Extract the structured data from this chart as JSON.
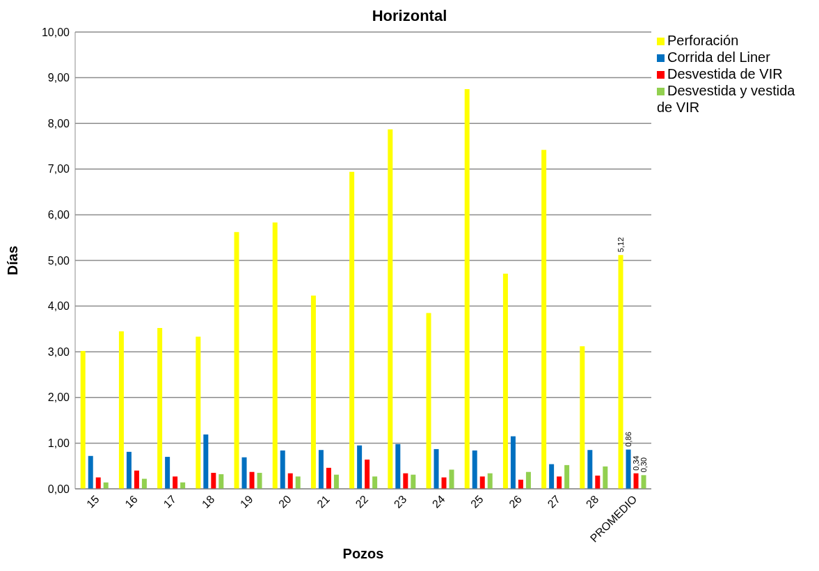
{
  "chart_data": {
    "type": "bar",
    "title": "Horizontal",
    "xlabel": "Pozos",
    "ylabel": "Días",
    "categories": [
      "15",
      "16",
      "17",
      "18",
      "19",
      "20",
      "21",
      "22",
      "23",
      "24",
      "25",
      "26",
      "27",
      "28",
      "PROMEDIO"
    ],
    "series": [
      {
        "name": "Perforación",
        "color": "#ffff00",
        "values": [
          3.02,
          3.45,
          3.52,
          3.33,
          5.62,
          5.83,
          4.23,
          6.94,
          7.87,
          3.85,
          8.75,
          4.71,
          7.42,
          3.12,
          5.12
        ],
        "value_labels": [
          null,
          null,
          null,
          null,
          null,
          null,
          null,
          null,
          null,
          null,
          null,
          null,
          null,
          null,
          "5,12"
        ]
      },
      {
        "name": "Corrida del Liner",
        "color": "#0070c0",
        "values": [
          0.72,
          0.81,
          0.7,
          1.19,
          0.69,
          0.84,
          0.85,
          0.95,
          0.98,
          0.87,
          0.84,
          1.15,
          0.54,
          0.85,
          0.86
        ],
        "value_labels": [
          null,
          null,
          null,
          null,
          null,
          null,
          null,
          null,
          null,
          null,
          null,
          null,
          null,
          null,
          "0,86"
        ]
      },
      {
        "name": "Desvestida de VIR",
        "color": "#ff0000",
        "values": [
          0.25,
          0.4,
          0.27,
          0.35,
          0.37,
          0.34,
          0.46,
          0.64,
          0.34,
          0.25,
          0.27,
          0.2,
          0.27,
          0.29,
          0.34
        ],
        "value_labels": [
          null,
          null,
          null,
          null,
          null,
          null,
          null,
          null,
          null,
          null,
          null,
          null,
          null,
          null,
          "0,34"
        ]
      },
      {
        "name": "Desvestida y vestida de VIR",
        "color": "#92d050",
        "values": [
          0.14,
          0.22,
          0.14,
          0.32,
          0.35,
          0.27,
          0.31,
          0.27,
          0.31,
          0.42,
          0.34,
          0.37,
          0.52,
          0.49,
          0.3
        ],
        "value_labels": [
          null,
          null,
          null,
          null,
          null,
          null,
          null,
          null,
          null,
          null,
          null,
          null,
          null,
          null,
          "0,30"
        ]
      }
    ],
    "ylim": [
      0,
      10
    ],
    "yticks": [
      {
        "value": 0,
        "label": "0,00"
      },
      {
        "value": 1,
        "label": "1,00"
      },
      {
        "value": 2,
        "label": "2,00"
      },
      {
        "value": 3,
        "label": "3,00"
      },
      {
        "value": 4,
        "label": "4,00"
      },
      {
        "value": 5,
        "label": "5,00"
      },
      {
        "value": 6,
        "label": "6,00"
      },
      {
        "value": 7,
        "label": "7,00"
      },
      {
        "value": 8,
        "label": "8,00"
      },
      {
        "value": 9,
        "label": "9,00"
      },
      {
        "value": 10,
        "label": "10,00"
      }
    ],
    "grid": "y",
    "legend": "top right"
  }
}
